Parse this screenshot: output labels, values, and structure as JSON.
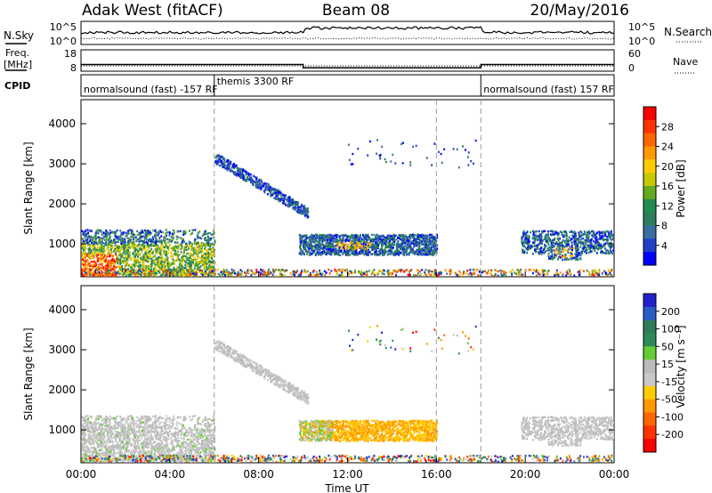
{
  "header": {
    "station": "Adak West (fitACF)",
    "beam": "Beam 08",
    "date": "20/May/2016"
  },
  "strip_labels": {
    "nsky": "N.Sky",
    "nsky_ticks": [
      "10^5",
      "10^0"
    ],
    "nsearch": "N.Search",
    "nsearch_ticks": [
      "10^5",
      "10^0"
    ],
    "freq_label": "Freq.",
    "freq_unit": "[MHz]",
    "freq_ticks": [
      "18",
      "8"
    ],
    "nave": "Nave",
    "nave_ticks": [
      "60",
      "0"
    ],
    "cpid": "CPID"
  },
  "cpid_segments": [
    {
      "label": "normalsound (fast) -157 RF",
      "start_h": 0,
      "end_h": 6
    },
    {
      "label": "themis 3300 RF",
      "start_h": 6,
      "end_h": 18
    },
    {
      "label": "normalsound (fast) 157 RF",
      "start_h": 18,
      "end_h": 24
    }
  ],
  "freq_steps": [
    {
      "start_h": 0,
      "end_h": 10,
      "mhz": 10.5
    },
    {
      "start_h": 10,
      "end_h": 18,
      "mhz": 8.5
    },
    {
      "start_h": 18,
      "end_h": 24,
      "mhz": 10.5
    }
  ],
  "power_colorbar": {
    "label": "Power [dB]",
    "ticks": [
      "28",
      "24",
      "20",
      "16",
      "12",
      "8",
      "4"
    ],
    "colors": [
      "#ff0000",
      "#ff3300",
      "#ff6600",
      "#ff9900",
      "#ffcc00",
      "#c8c800",
      "#66aa22",
      "#228b50",
      "#2e7d5a",
      "#3a6ea0",
      "#1f3fc8",
      "#0000ff"
    ]
  },
  "velocity_colorbar": {
    "label": "Velocity [m s⁻¹]",
    "ticks": [
      "200",
      "100",
      "50",
      "15",
      "-15",
      "-50",
      "-100",
      "-200"
    ],
    "colors": [
      "#2222cc",
      "#2a5cc8",
      "#2e7d5a",
      "#2e8b57",
      "#66cc33",
      "#bbbbbb",
      "#c8c8c8",
      "#ffcc00",
      "#ff9900",
      "#ff6600",
      "#ff3300",
      "#ff0000"
    ]
  },
  "chart_data": {
    "type": "heatmap",
    "x_unit_label": "Time UT",
    "x_ticks": [
      "00:00",
      "04:00",
      "08:00",
      "12:00",
      "16:00",
      "20:00",
      "00:00"
    ],
    "x_range_hours": [
      0,
      24
    ],
    "ylabel": "Slant Range [km]",
    "y_ticks": [
      4000,
      3000,
      2000,
      1000
    ],
    "ylim_km": [
      180,
      4600
    ],
    "mode_change_hours": [
      6,
      16,
      18
    ],
    "panels": [
      {
        "name": "Power",
        "echo_regions": [
          {
            "t0": 0.0,
            "t1": 6.0,
            "r0": 300,
            "r1": 1300,
            "level": "strong, red near 00:00-01:30 at 400-700 km, orange/green above"
          },
          {
            "t0": 6.0,
            "t1": 10.0,
            "r0": 1500,
            "r1": 3200,
            "level": "weak blue descending streak"
          },
          {
            "t0": 10.0,
            "t1": 16.0,
            "r0": 700,
            "r1": 1200,
            "level": "blue/green with orange core near 12:00"
          },
          {
            "t0": 20.0,
            "t1": 24.0,
            "r0": 600,
            "r1": 1300,
            "level": "blue/green with orange near 21:30-22:00"
          }
        ]
      },
      {
        "name": "Velocity",
        "echo_regions": [
          {
            "t0": 0.0,
            "t1": 6.0,
            "r0": 300,
            "r1": 1300,
            "level": "grey, near zero"
          },
          {
            "t0": 6.0,
            "t1": 10.0,
            "r0": 1500,
            "r1": 3200,
            "level": "grey descending streak"
          },
          {
            "t0": 10.0,
            "t1": 16.0,
            "r0": 700,
            "r1": 1200,
            "level": "orange, about -30 m/s, grey/green at start"
          },
          {
            "t0": 20.0,
            "t1": 24.0,
            "r0": 600,
            "r1": 1300,
            "level": "grey, near zero"
          }
        ]
      }
    ]
  }
}
